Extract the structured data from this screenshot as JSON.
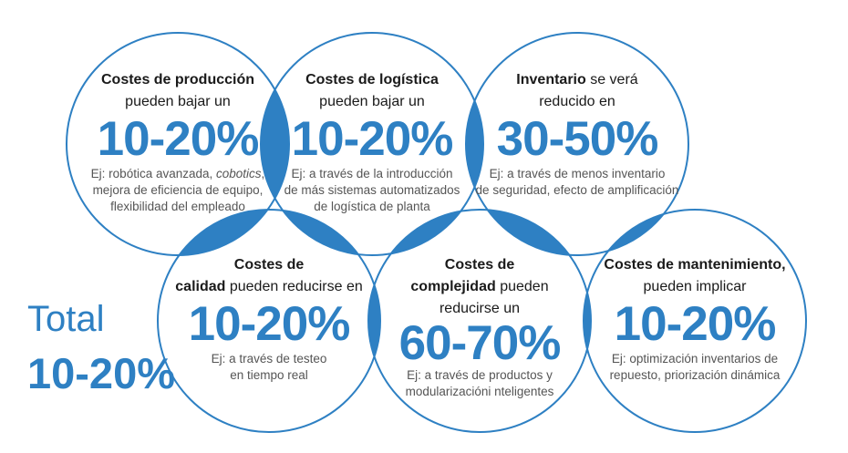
{
  "colors": {
    "accent": "#2e80c3",
    "lens": "#2e80c3",
    "ring": "#2e80c3"
  },
  "total": {
    "label": "Total",
    "value": "10-20%"
  },
  "circles": [
    {
      "title_bold": "Costes de producción",
      "title_rest": "",
      "line2": "pueden bajar un",
      "value": "10-20%",
      "example_pre": "Ej: robótica avanzada, ",
      "example_italic": "cobotics",
      "example_post": ",",
      "example_line2": "mejora de eficiencia de equipo,",
      "example_line3": "flexibilidad del empleado"
    },
    {
      "title_bold": "Costes de logística",
      "title_rest": "",
      "line2": "pueden bajar un",
      "value": "10-20%",
      "example_line1": "Ej: a través de la introducción",
      "example_line2": "de más sistemas automatizados",
      "example_line3": "de logística de planta"
    },
    {
      "title_bold": "Inventario",
      "title_rest": " se verá",
      "line2": "reducido en",
      "value": "30-50%",
      "example_line1": "Ej: a través de menos inventario",
      "example_line2": "de seguridad, efecto de amplificación"
    },
    {
      "title_bold": "Costes de",
      "line2_bold": "calidad",
      "line2_rest": " pueden reducirse en",
      "value": "10-20%",
      "example_line1": "Ej: a través de testeo",
      "example_line2": "en tiempo real"
    },
    {
      "title_bold": "Costes de",
      "line2_bold": "complejidad",
      "line2_rest": " pueden",
      "line3": "reducirse un",
      "value": "60-70%",
      "example_line1": "Ej: a través de productos y",
      "example_line2": "modularizacióni nteligentes"
    },
    {
      "title_bold": "Costes de mantenimiento,",
      "line2": "pueden implicar",
      "value": "10-20%",
      "example_line1": "Ej: optimización inventarios de",
      "example_line2": "repuesto, priorización dinámica"
    }
  ]
}
